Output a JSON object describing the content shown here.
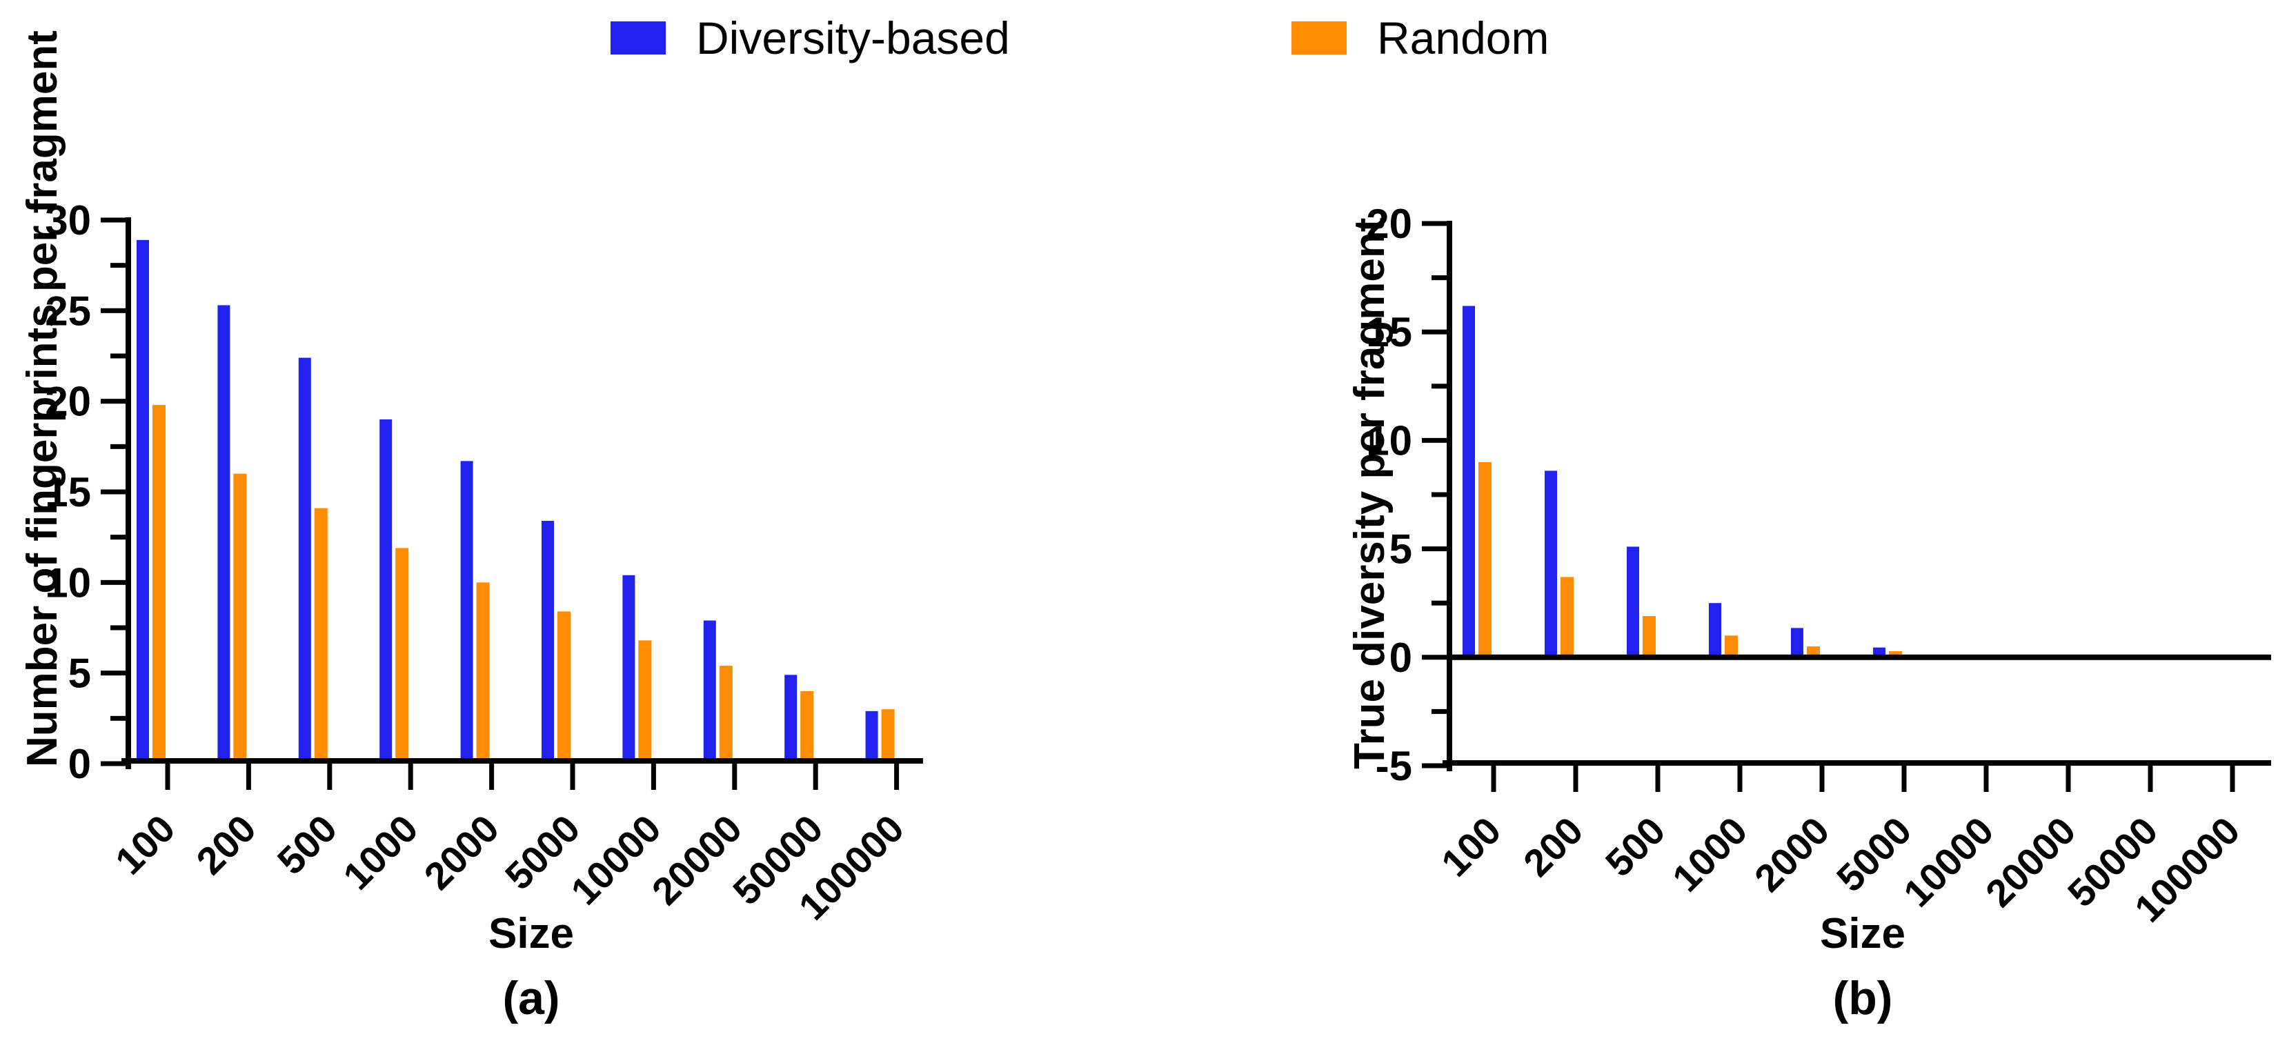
{
  "legend": {
    "items": [
      {
        "label": "Diversity-based",
        "color": "#2222f0"
      },
      {
        "label": "Random",
        "color": "#ff8c05"
      }
    ]
  },
  "chart_data": [
    {
      "type": "bar",
      "caption": "(a)",
      "xlabel": "Size",
      "ylabel": "Number of fingerprints per fragment",
      "categories": [
        "100",
        "200",
        "500",
        "1000",
        "2000",
        "5000",
        "10000",
        "20000",
        "50000",
        "100000"
      ],
      "series": [
        {
          "name": "Diversity-based",
          "color": "#2222f0",
          "values": [
            28.9,
            25.3,
            22.4,
            19.0,
            16.7,
            13.4,
            10.4,
            7.9,
            4.9,
            2.9
          ]
        },
        {
          "name": "Random",
          "color": "#ff8c05",
          "values": [
            19.8,
            16.0,
            14.1,
            11.9,
            10.0,
            8.4,
            6.8,
            5.4,
            4.0,
            3.0
          ]
        }
      ],
      "ylim": [
        0,
        30
      ],
      "yticks": [
        "0",
        "5",
        "10",
        "15",
        "20",
        "25",
        "30"
      ],
      "ytick_step": 5,
      "yminor_step": 2.5,
      "grid": false,
      "legend_position": "top"
    },
    {
      "type": "bar",
      "caption": "(b)",
      "xlabel": "Size",
      "ylabel": "True diversity per fragment",
      "categories": [
        "100",
        "200",
        "500",
        "1000",
        "2000",
        "5000",
        "10000",
        "20000",
        "50000",
        "100000"
      ],
      "series": [
        {
          "name": "Diversity-based",
          "color": "#2222f0",
          "values": [
            16.2,
            8.6,
            5.1,
            2.5,
            1.35,
            0.45,
            0.12,
            0.05,
            0.03,
            0.02
          ]
        },
        {
          "name": "Random",
          "color": "#ff8c05",
          "values": [
            9.0,
            3.7,
            1.9,
            1.0,
            0.5,
            0.28,
            0.08,
            0.04,
            0.02,
            0.015
          ]
        }
      ],
      "ylim": [
        -5,
        20
      ],
      "yticks": [
        "-5",
        "0",
        "5",
        "10",
        "15",
        "20"
      ],
      "ytick_step": 5,
      "yminor_step": 2.5,
      "grid": false,
      "legend_position": "top"
    }
  ]
}
